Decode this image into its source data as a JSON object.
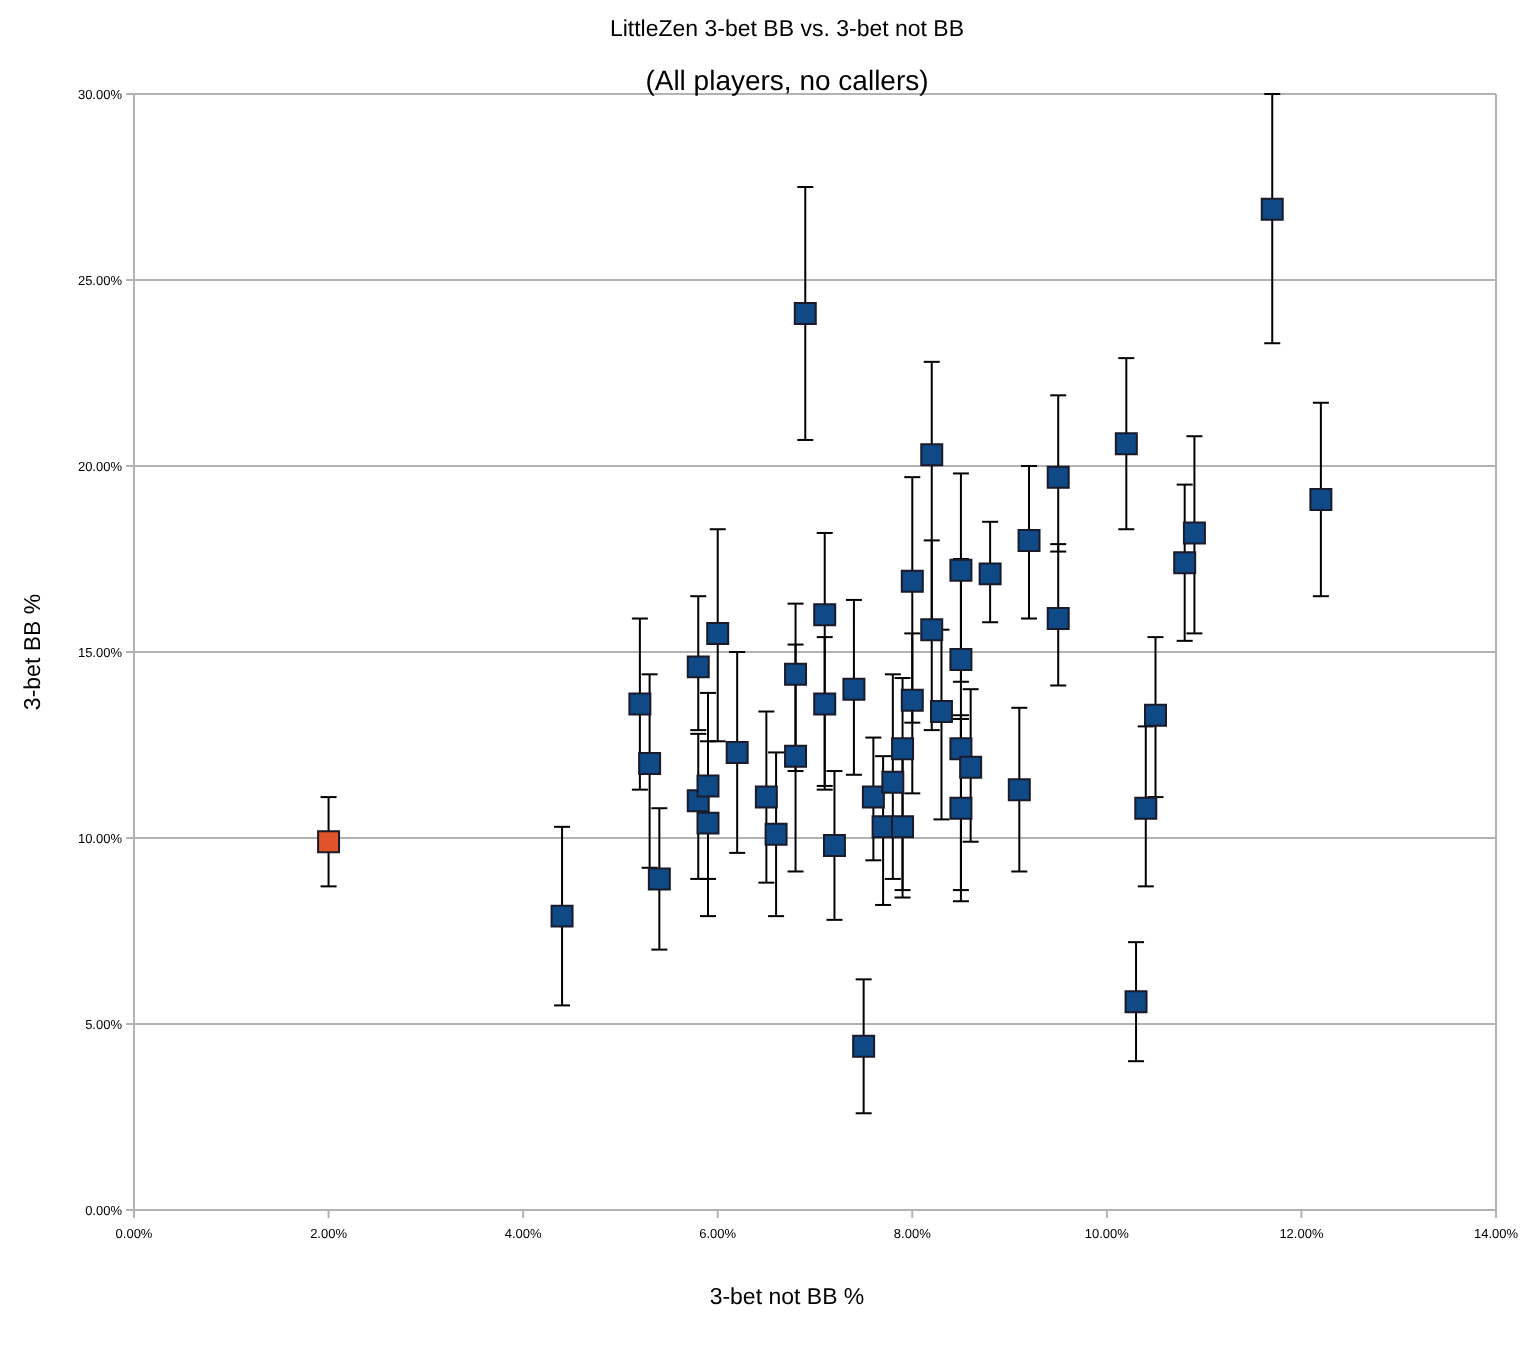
{
  "chart_data": {
    "type": "scatter",
    "title": "LittleZen 3-bet BB vs. 3-bet not BB",
    "subtitle": "(All players, no callers)",
    "xlabel": "3-bet not BB %",
    "ylabel": "3-bet BB %",
    "xlim": [
      0,
      14
    ],
    "ylim": [
      0,
      30
    ],
    "xticks": [
      {
        "value": 0,
        "label": "0.00%"
      },
      {
        "value": 2,
        "label": "2.00%"
      },
      {
        "value": 4,
        "label": "4.00%"
      },
      {
        "value": 6,
        "label": "6.00%"
      },
      {
        "value": 8,
        "label": "8.00%"
      },
      {
        "value": 10,
        "label": "10.00%"
      },
      {
        "value": 12,
        "label": "12.00%"
      },
      {
        "value": 14,
        "label": "14.00%"
      }
    ],
    "yticks": [
      {
        "value": 0,
        "label": "0.00%"
      },
      {
        "value": 5,
        "label": "5.00%"
      },
      {
        "value": 10,
        "label": "10.00%"
      },
      {
        "value": 15,
        "label": "15.00%"
      },
      {
        "value": 20,
        "label": "20.00%"
      },
      {
        "value": 25,
        "label": "25.00%"
      },
      {
        "value": 30,
        "label": "30.00%"
      }
    ],
    "grid": "y",
    "marker": "square",
    "series": [
      {
        "color": "#e0532b",
        "x": [
          2.0
        ],
        "values": [
          9.9
        ],
        "errors": [
          [
            8.7,
            11.1
          ]
        ]
      },
      {
        "color": "#0f4a86",
        "x": [
          4.4,
          5.2,
          5.3,
          5.4,
          5.8,
          5.8,
          5.9,
          5.9,
          6.0,
          6.2,
          6.5,
          6.6,
          6.8,
          6.8,
          6.9,
          7.1,
          7.1,
          7.2,
          7.4,
          7.5,
          7.6,
          7.7,
          7.8,
          7.9,
          7.9,
          8.0,
          8.0,
          8.2,
          8.2,
          8.3,
          8.5,
          8.5,
          8.5,
          8.5,
          8.6,
          8.8,
          9.1,
          9.2,
          9.5,
          9.5,
          10.2,
          10.3,
          10.4,
          10.5,
          10.8,
          10.9,
          11.7,
          12.2
        ],
        "values": [
          7.9,
          13.6,
          12.0,
          8.9,
          14.6,
          11.0,
          11.4,
          10.4,
          15.5,
          12.3,
          11.1,
          10.1,
          14.4,
          12.2,
          24.1,
          16.0,
          13.6,
          9.8,
          14.0,
          4.4,
          11.1,
          10.3,
          11.5,
          10.3,
          12.4,
          16.9,
          13.7,
          20.3,
          15.6,
          13.4,
          17.2,
          14.8,
          12.4,
          10.8,
          11.9,
          17.1,
          11.3,
          18.0,
          19.7,
          15.9,
          20.6,
          5.6,
          10.8,
          13.3,
          17.4,
          18.2,
          26.9,
          19.1
        ],
        "errors": [
          [
            5.5,
            10.3
          ],
          [
            11.3,
            15.9
          ],
          [
            9.2,
            14.4
          ],
          [
            7.0,
            10.8
          ],
          [
            12.9,
            16.5
          ],
          [
            8.9,
            12.8
          ],
          [
            8.9,
            13.9
          ],
          [
            7.9,
            12.6
          ],
          [
            12.6,
            18.3
          ],
          [
            9.6,
            15.0
          ],
          [
            8.8,
            13.4
          ],
          [
            7.9,
            12.3
          ],
          [
            11.8,
            16.3
          ],
          [
            9.1,
            15.2
          ],
          [
            20.7,
            27.5
          ],
          [
            11.4,
            18.2
          ],
          [
            11.3,
            15.4
          ],
          [
            7.8,
            11.8
          ],
          [
            11.7,
            16.4
          ],
          [
            2.6,
            6.2
          ],
          [
            9.4,
            12.7
          ],
          [
            8.2,
            12.2
          ],
          [
            8.9,
            14.4
          ],
          [
            8.4,
            12.5
          ],
          [
            8.6,
            14.3
          ],
          [
            13.1,
            19.7
          ],
          [
            11.2,
            15.5
          ],
          [
            15.8,
            22.8
          ],
          [
            12.9,
            18.0
          ],
          [
            10.5,
            15.6
          ],
          [
            14.2,
            19.8
          ],
          [
            12.3,
            17.5
          ],
          [
            8.3,
            13.2
          ],
          [
            8.6,
            13.3
          ],
          [
            9.9,
            14.0
          ],
          [
            15.8,
            18.5
          ],
          [
            9.1,
            13.5
          ],
          [
            15.9,
            20.0
          ],
          [
            17.7,
            21.9
          ],
          [
            14.1,
            17.9
          ],
          [
            18.3,
            22.9
          ],
          [
            4.0,
            7.2
          ],
          [
            8.7,
            13.0
          ],
          [
            11.1,
            15.4
          ],
          [
            15.3,
            19.5
          ],
          [
            15.5,
            20.8
          ],
          [
            23.3,
            30.0
          ],
          [
            16.5,
            21.7
          ]
        ]
      }
    ]
  }
}
